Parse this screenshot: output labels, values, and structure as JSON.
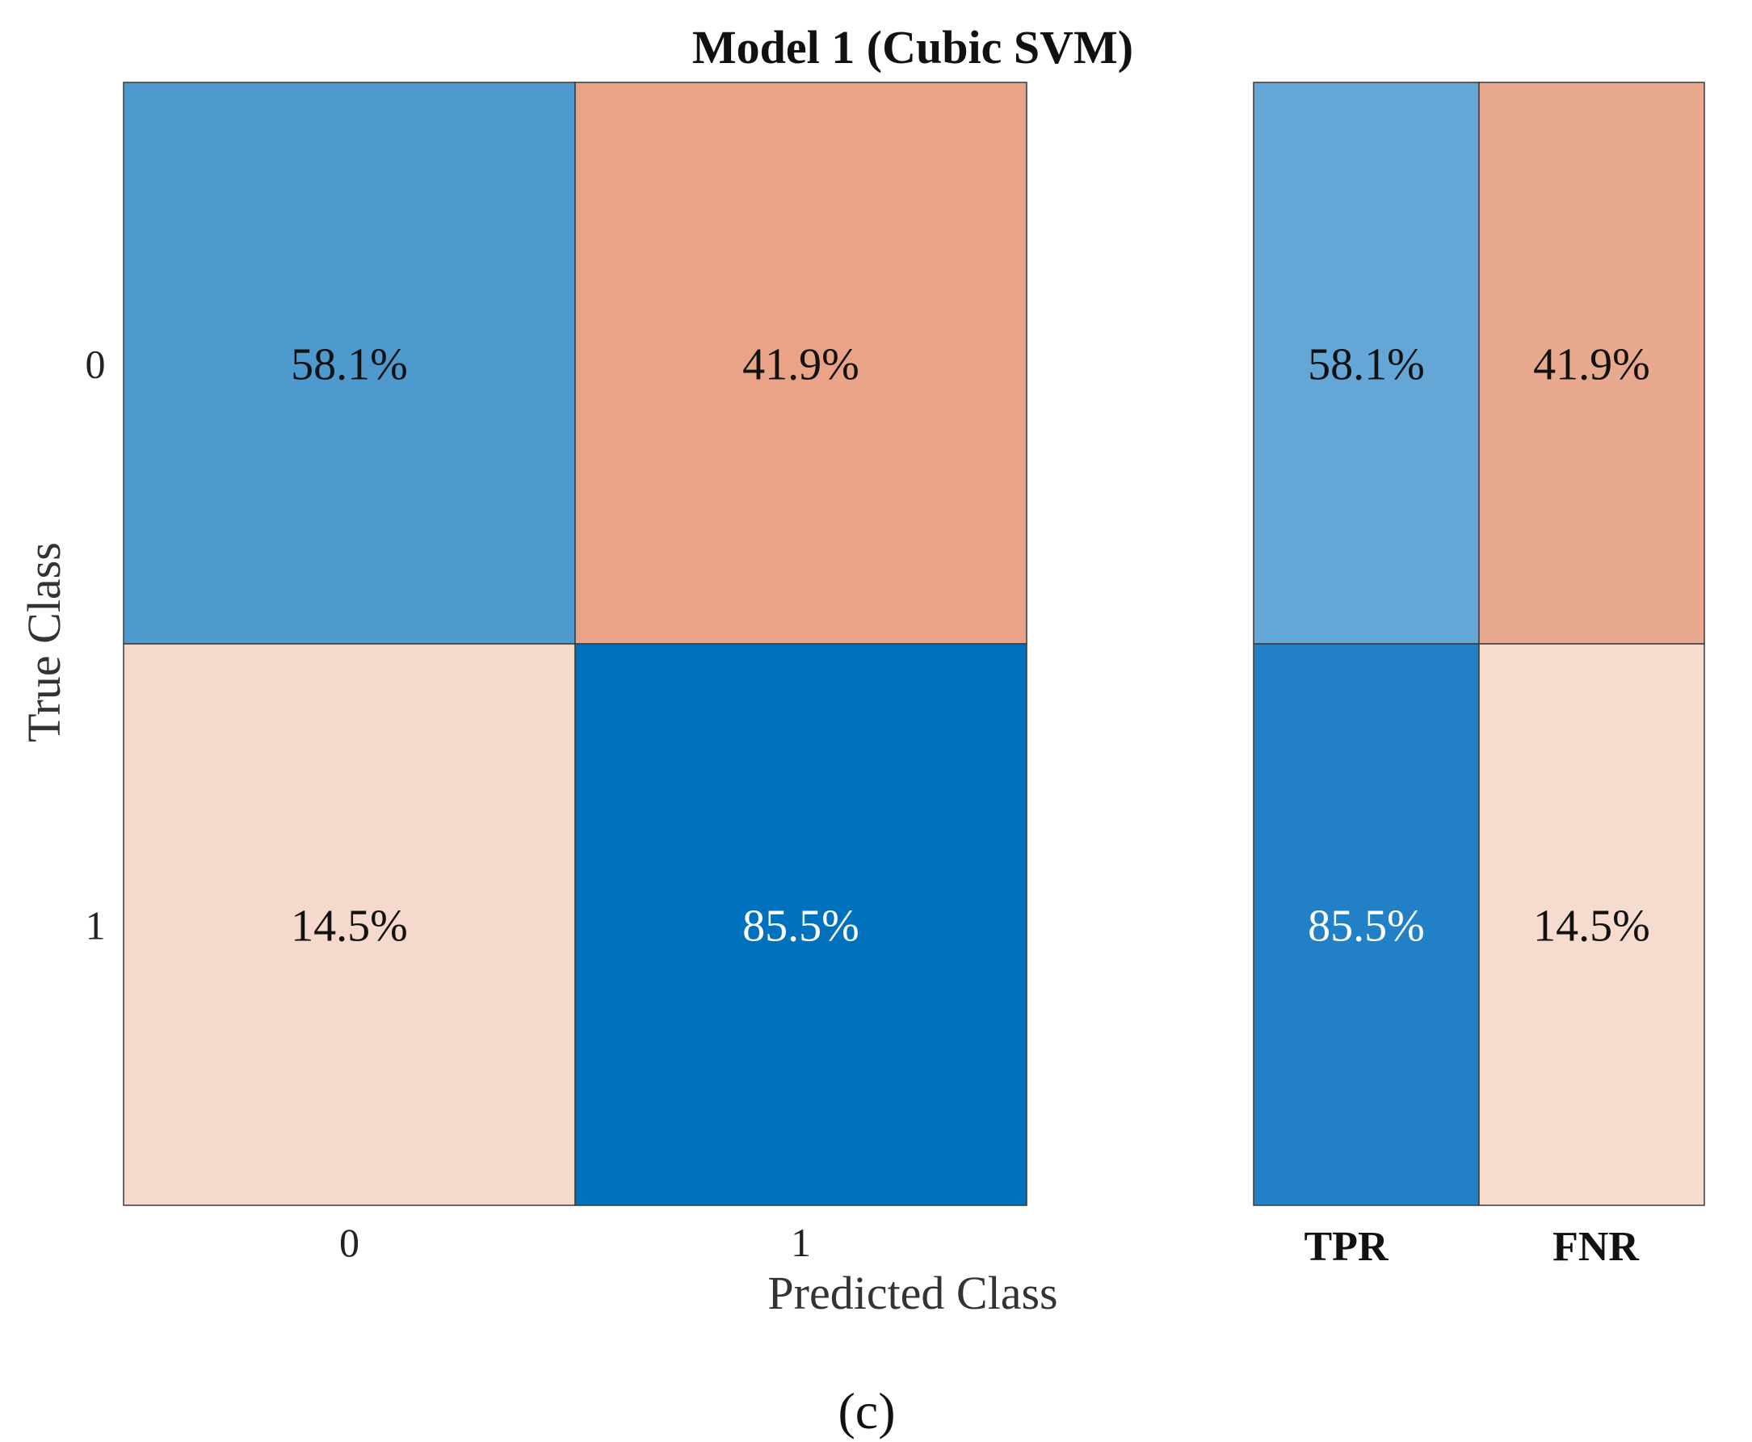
{
  "chart_data": {
    "type": "heatmap",
    "title": "Model 1 (Cubic SVM)",
    "xlabel": "Predicted Class",
    "ylabel": "True Class",
    "x_categories": [
      "0",
      "1"
    ],
    "y_categories": [
      "0",
      "1"
    ],
    "values": [
      [
        58.1,
        41.9
      ],
      [
        14.5,
        85.5
      ]
    ],
    "cell_labels": [
      [
        "58.1%",
        "41.9%"
      ],
      [
        "14.5%",
        "85.5%"
      ]
    ],
    "cell_colors": [
      [
        "#4e9acf",
        "#e9a488"
      ],
      [
        "#f5d9cc",
        "#0072bd"
      ]
    ],
    "cell_text_colors": [
      [
        "#111111",
        "#111111"
      ],
      [
        "#111111",
        "#ffffff"
      ]
    ],
    "summary": {
      "columns": [
        "TPR",
        "FNR"
      ],
      "values": [
        [
          58.1,
          41.9
        ],
        [
          85.5,
          14.5
        ]
      ],
      "cell_labels": [
        [
          "58.1%",
          "41.9%"
        ],
        [
          "85.5%",
          "14.5%"
        ]
      ],
      "cell_colors": [
        [
          "#64a6d6",
          "#e9a98e"
        ],
        [
          "#2180c6",
          "#f6dbcf"
        ]
      ],
      "cell_text_colors": [
        [
          "#111111",
          "#111111"
        ],
        [
          "#ffffff",
          "#111111"
        ]
      ]
    },
    "caption": "(c)"
  }
}
